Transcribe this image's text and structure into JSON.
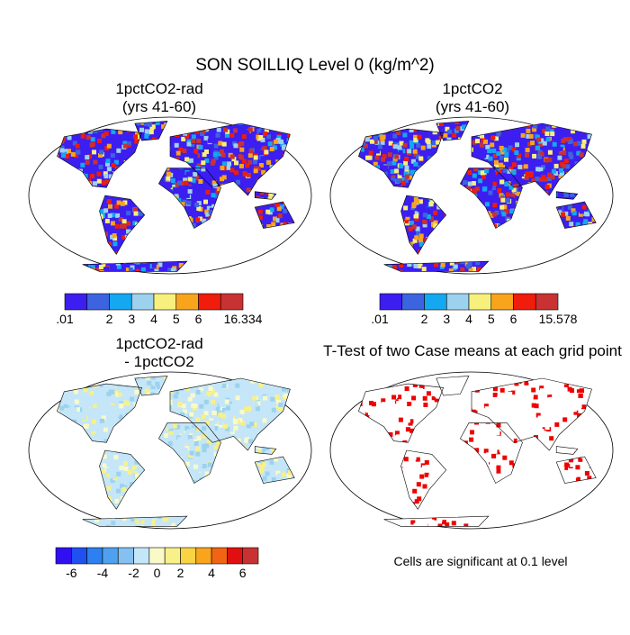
{
  "title": "SON SOILLIQ Level 0 (kg/m^2)",
  "panels": [
    {
      "title": [
        "1pctCO2-rad",
        "(yrs 41-60)"
      ],
      "colorbar": {
        "colors": [
          "#3c1ef0",
          "#3c64e0",
          "#14a8f0",
          "#9cd2ee",
          "#f8f07c",
          "#f8a41c",
          "#f01c0c",
          "#c83232"
        ],
        "labels": [
          ".01",
          "2",
          "3",
          "4",
          "5",
          "6",
          "16.334"
        ]
      }
    },
    {
      "title": [
        "1pctCO2",
        "(yrs 41-60)"
      ],
      "colorbar": {
        "colors": [
          "#3c1ef0",
          "#3c64e0",
          "#14a8f0",
          "#9cd2ee",
          "#f8f07c",
          "#f8a41c",
          "#f01c0c",
          "#c83232"
        ],
        "labels": [
          ".01",
          "2",
          "3",
          "4",
          "5",
          "6",
          "15.578"
        ]
      }
    },
    {
      "title": [
        "1pctCO2-rad",
        "- 1pctCO2"
      ],
      "colorbar": {
        "colors": [
          "#3010f0",
          "#2050f0",
          "#2c80f0",
          "#50a0f0",
          "#84c0f0",
          "#c4e6f8",
          "#fafac8",
          "#f8f088",
          "#f8d444",
          "#f8a41c",
          "#f06414",
          "#e01010",
          "#c83232"
        ],
        "labels": [
          "-6",
          "-4",
          "-2",
          "0",
          "2",
          "4",
          "6"
        ]
      }
    },
    {
      "title": [
        "T-Test of two Case means at each grid point"
      ],
      "note": "Cells are significant at 0.1 level"
    }
  ]
}
